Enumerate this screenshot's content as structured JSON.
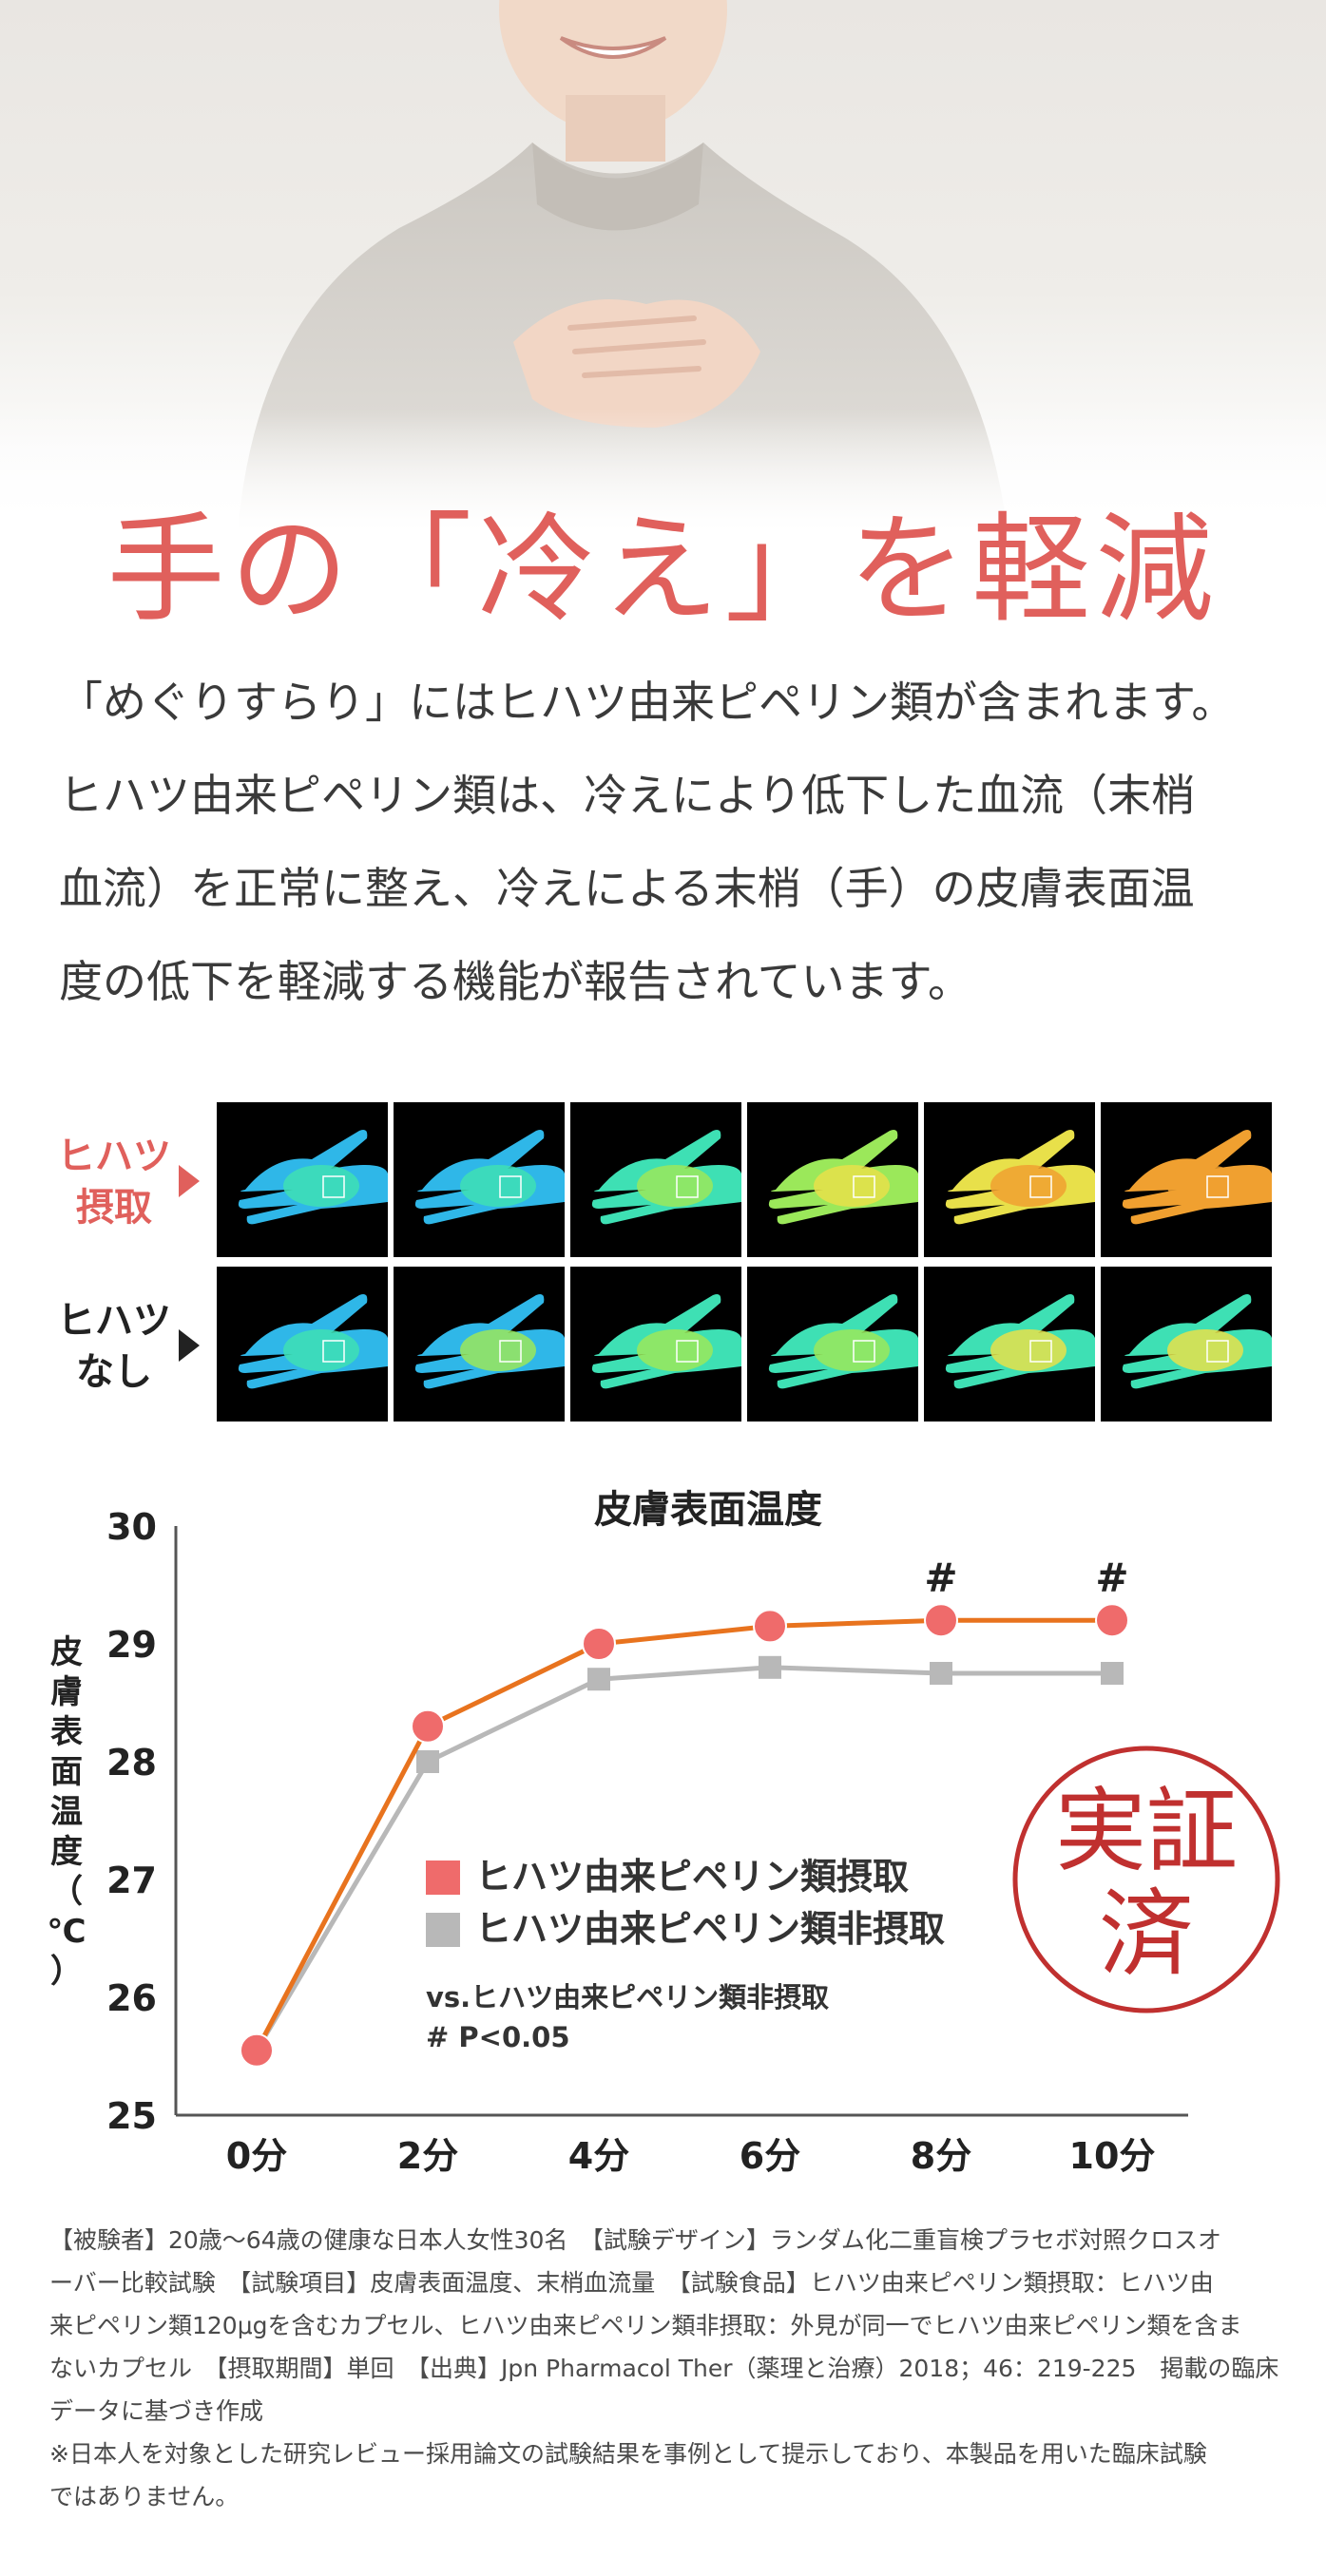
{
  "headline": "手の「冷え」を軽減",
  "intro_lines": [
    "「めぐりすらり」にはヒハツ由来ピペリン類が含まれます。",
    "ヒハツ由来ピペリン類は、冷えにより低下した血流（末梢",
    "血流）を正常に整え、冷えによる末梢（手）の皮膚表面温",
    "度の低下を軽減する機能が報告されています。"
  ],
  "thermo": {
    "row1": {
      "label_line1": "ヒハツ",
      "label_line2": "摂取",
      "color": "#e0605c"
    },
    "row2": {
      "label_line1": "ヒハツ",
      "label_line2": "なし",
      "color": "#222222"
    },
    "palette": [
      "#2a5bd7",
      "#2fb7e8",
      "#3ee0b4",
      "#9be85a",
      "#e8e04a",
      "#f0a030"
    ]
  },
  "chart_data": {
    "type": "line",
    "title": "皮膚表面温度",
    "ylabel": "皮膚表面温度（℃）",
    "ylim": [
      25,
      30
    ],
    "yticks": [
      "25",
      "26",
      "27",
      "28",
      "29",
      "30"
    ],
    "categories": [
      "0分",
      "2分",
      "4分",
      "6分",
      "8分",
      "10分"
    ],
    "series": [
      {
        "name": "ヒハツ由来ピペリン類摂取",
        "values": [
          25.55,
          28.3,
          29.0,
          29.15,
          29.2,
          29.2
        ],
        "line_color": "#e8731e",
        "marker_color": "#ef6b6b"
      },
      {
        "name": "ヒハツ由来ピペリン類非摂取",
        "values": [
          25.55,
          28.0,
          28.7,
          28.8,
          28.75,
          28.75
        ],
        "line_color": "#b8b8b8",
        "marker_color": "#b8b8b8"
      }
    ],
    "significance_markers": [
      {
        "category": "8分",
        "label": "#"
      },
      {
        "category": "10分",
        "label": "#"
      }
    ],
    "note_line1": "vs.ヒハツ由来ピペリン類非摂取",
    "note_line2": "# P<0.05",
    "legend_position": "inside-center"
  },
  "stamp": {
    "line1": "実証",
    "line2": "済",
    "color": "#c0302f"
  },
  "footnote_lines": [
    "【被験者】20歳〜64歳の健康な日本人女性30名　【試験デザイン】ランダム化二重盲検プラセボ対照クロスオ",
    "ーバー比較試験　【試験項目】皮膚表面温度、末梢血流量　【試験食品】ヒハツ由来ピペリン類摂取：ヒハツ由",
    "来ピペリン類120μgを含むカプセル、ヒハツ由来ピペリン類非摂取：外見が同一でヒハツ由来ピペリン類を含ま",
    "ないカプセル　【摂取期間】単回　【出典】Jpn Pharmacol Ther（薬理と治療）2018；46：219-225　掲載の臨床",
    "データに基づき作成",
    "※日本人を対象とした研究レビュー採用論文の試験結果を事例として提示しており、本製品を用いた臨床試験",
    "ではありません。"
  ]
}
